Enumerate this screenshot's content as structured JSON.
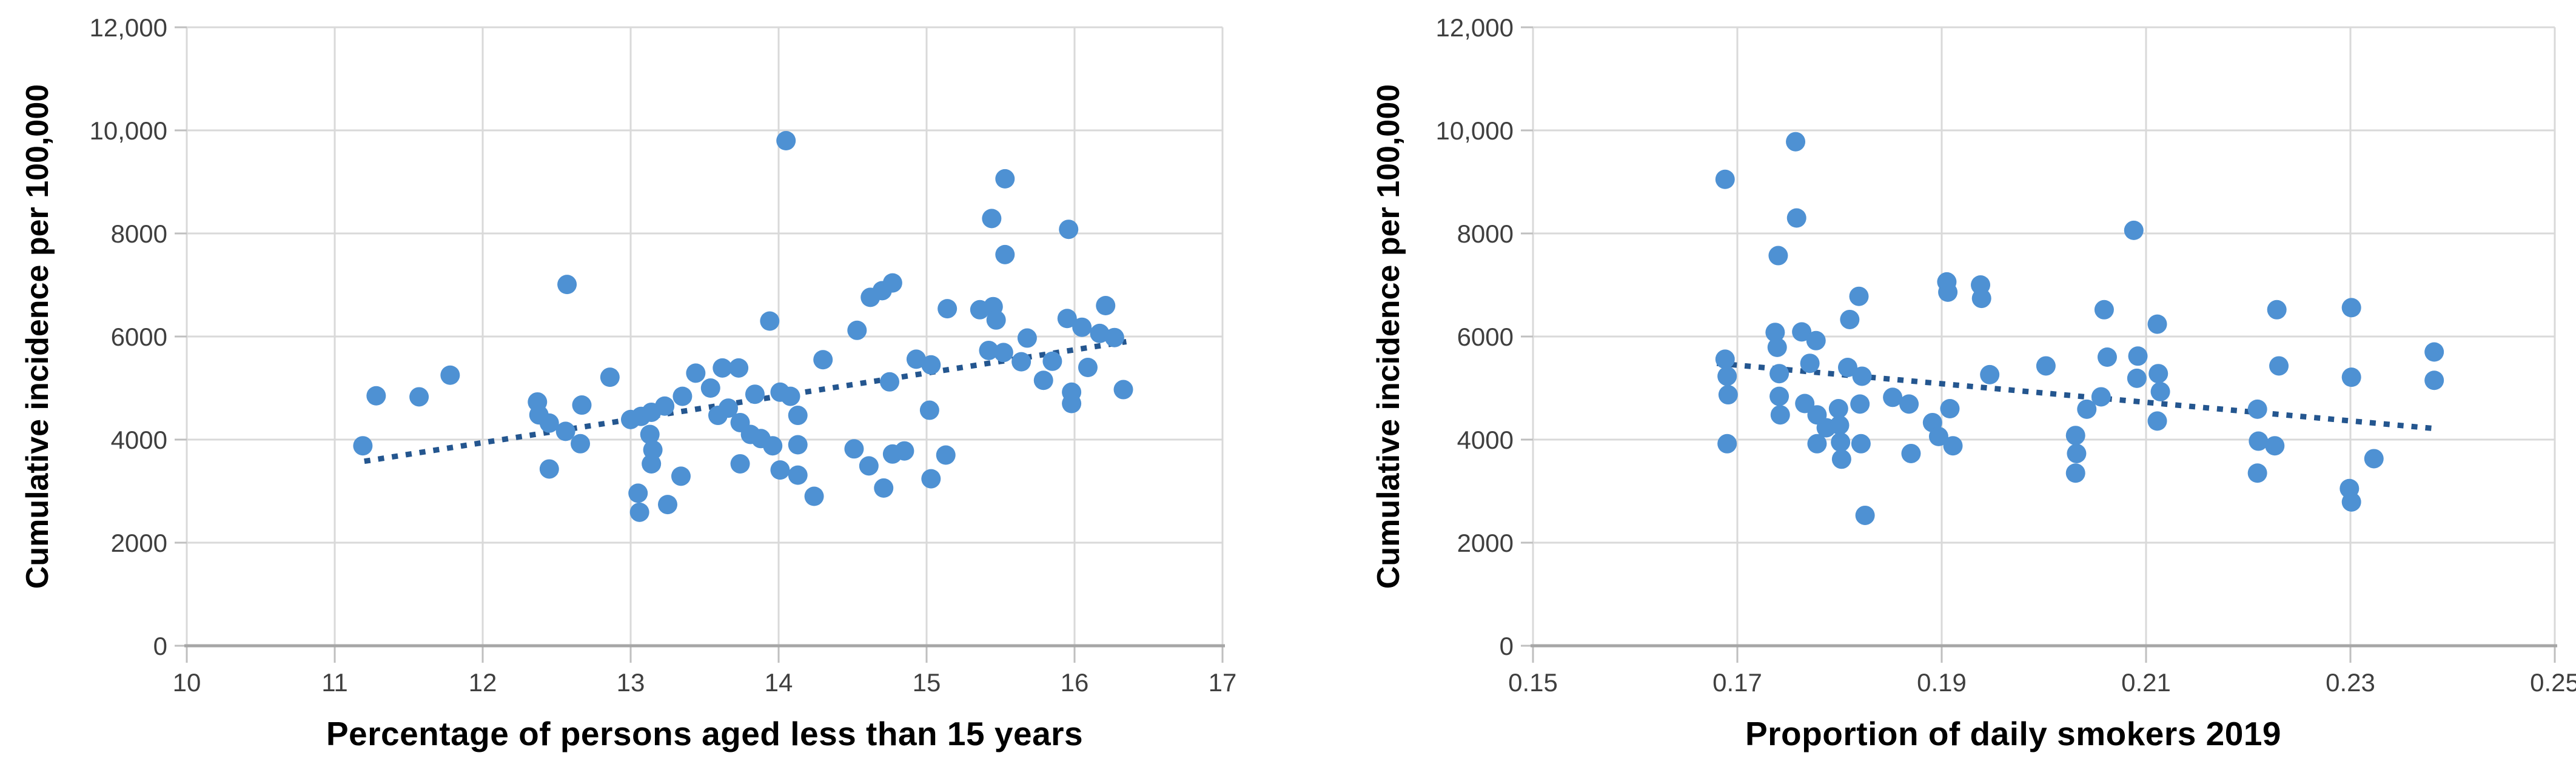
{
  "figure": {
    "background": "#FFFFFF",
    "marker_color": "#4E91D3",
    "marker_radius": 16,
    "trendline_color": "#24568F",
    "gridline_color": "#D9D9D9",
    "axis_line_color": "#A6A6A6",
    "tick_mark_color": "#BFBFBF",
    "tick_label_color": "#3F3F3F",
    "axis_title_color": "#000000"
  },
  "chart_data": [
    {
      "type": "scatter",
      "title": "",
      "xlabel": "Percentage of persons aged less than 15 years",
      "ylabel": "Cumulative incidence per 100,000",
      "xlim": [
        10,
        17
      ],
      "ylim": [
        0,
        12000
      ],
      "x_ticks": [
        10,
        11,
        12,
        13,
        14,
        15,
        16,
        17
      ],
      "x_tick_labels": [
        "10",
        "11",
        "12",
        "13",
        "14",
        "15",
        "16",
        "17"
      ],
      "y_ticks": [
        0,
        2000,
        4000,
        6000,
        8000,
        10000,
        12000
      ],
      "y_tick_labels": [
        "0",
        "2000",
        "4000",
        "6000",
        "8000",
        "10,000",
        "12,000"
      ],
      "grid": true,
      "legend": false,
      "trendline": {
        "style": "dotted",
        "x1": 11.2,
        "y1": 3580,
        "x2": 16.35,
        "y2": 5900
      },
      "points": [
        [
          11.19,
          3880
        ],
        [
          11.28,
          4850
        ],
        [
          11.57,
          4830
        ],
        [
          11.78,
          5250
        ],
        [
          12.37,
          4730
        ],
        [
          12.38,
          4480
        ],
        [
          12.45,
          4320
        ],
        [
          12.45,
          3430
        ],
        [
          12.56,
          4160
        ],
        [
          12.57,
          7010
        ],
        [
          12.66,
          3920
        ],
        [
          12.67,
          4670
        ],
        [
          12.86,
          5210
        ],
        [
          13.0,
          4390
        ],
        [
          13.05,
          2960
        ],
        [
          13.06,
          2590
        ],
        [
          13.07,
          4450
        ],
        [
          13.13,
          4100
        ],
        [
          13.14,
          4530
        ],
        [
          13.14,
          3530
        ],
        [
          13.15,
          3800
        ],
        [
          13.23,
          4650
        ],
        [
          13.25,
          2740
        ],
        [
          13.34,
          3290
        ],
        [
          13.35,
          4840
        ],
        [
          13.44,
          5290
        ],
        [
          13.54,
          5000
        ],
        [
          13.62,
          5390
        ],
        [
          13.73,
          5390
        ],
        [
          13.59,
          4470
        ],
        [
          13.66,
          4610
        ],
        [
          13.74,
          4330
        ],
        [
          13.74,
          3530
        ],
        [
          13.81,
          4100
        ],
        [
          13.84,
          4880
        ],
        [
          13.88,
          4020
        ],
        [
          13.96,
          3880
        ],
        [
          13.94,
          6300
        ],
        [
          14.01,
          4920
        ],
        [
          14.08,
          4840
        ],
        [
          14.01,
          3410
        ],
        [
          14.05,
          9800
        ],
        [
          14.13,
          4470
        ],
        [
          14.13,
          3900
        ],
        [
          14.13,
          3310
        ],
        [
          14.24,
          2900
        ],
        [
          14.3,
          5550
        ],
        [
          14.51,
          3820
        ],
        [
          14.53,
          6120
        ],
        [
          14.61,
          3490
        ],
        [
          14.62,
          6760
        ],
        [
          14.7,
          6890
        ],
        [
          14.77,
          7040
        ],
        [
          14.71,
          3060
        ],
        [
          14.75,
          5120
        ],
        [
          14.77,
          3720
        ],
        [
          14.85,
          3780
        ],
        [
          14.93,
          5560
        ],
        [
          15.03,
          5450
        ],
        [
          15.02,
          4570
        ],
        [
          15.03,
          3240
        ],
        [
          15.13,
          3700
        ],
        [
          15.14,
          6540
        ],
        [
          15.36,
          6520
        ],
        [
          15.45,
          6580
        ],
        [
          15.47,
          6320
        ],
        [
          15.42,
          5730
        ],
        [
          15.52,
          5690
        ],
        [
          15.44,
          8290
        ],
        [
          15.53,
          9060
        ],
        [
          15.53,
          7590
        ],
        [
          15.64,
          5510
        ],
        [
          15.68,
          5970
        ],
        [
          15.79,
          5150
        ],
        [
          15.85,
          5520
        ],
        [
          15.95,
          6350
        ],
        [
          15.96,
          8080
        ],
        [
          15.98,
          4920
        ],
        [
          15.98,
          4700
        ],
        [
          16.05,
          6180
        ],
        [
          16.09,
          5400
        ],
        [
          16.17,
          6060
        ],
        [
          16.21,
          6600
        ],
        [
          16.27,
          5980
        ],
        [
          16.33,
          4970
        ]
      ]
    },
    {
      "type": "scatter",
      "title": "",
      "xlabel": "Proportion of daily smokers 2019",
      "ylabel": "Cumulative incidence per 100,000",
      "xlim": [
        0.15,
        0.25
      ],
      "ylim": [
        0,
        12000
      ],
      "x_ticks": [
        0.15,
        0.17,
        0.19,
        0.21,
        0.23,
        0.25
      ],
      "x_tick_labels": [
        "0.15",
        "0.17",
        "0.19",
        "0.21",
        "0.23",
        "0.25"
      ],
      "y_ticks": [
        0,
        2000,
        4000,
        6000,
        8000,
        10000,
        12000
      ],
      "y_tick_labels": [
        "0",
        "2000",
        "4000",
        "6000",
        "8000",
        "10,000",
        "12,000"
      ],
      "grid": true,
      "legend": false,
      "trendline": {
        "style": "dotted",
        "x1": 0.168,
        "y1": 5480,
        "x2": 0.2385,
        "y2": 4210
      },
      "points": [
        [
          0.1688,
          9050
        ],
        [
          0.1688,
          5560
        ],
        [
          0.169,
          5230
        ],
        [
          0.1691,
          4870
        ],
        [
          0.169,
          3920
        ],
        [
          0.1737,
          6080
        ],
        [
          0.1739,
          5790
        ],
        [
          0.1741,
          5280
        ],
        [
          0.1741,
          4840
        ],
        [
          0.1742,
          4480
        ],
        [
          0.174,
          7570
        ],
        [
          0.1757,
          9780
        ],
        [
          0.1758,
          8300
        ],
        [
          0.1763,
          6090
        ],
        [
          0.1777,
          5920
        ],
        [
          0.1771,
          5480
        ],
        [
          0.1766,
          4700
        ],
        [
          0.1778,
          4480
        ],
        [
          0.1787,
          4230
        ],
        [
          0.1799,
          4600
        ],
        [
          0.18,
          4280
        ],
        [
          0.1801,
          3950
        ],
        [
          0.1802,
          3620
        ],
        [
          0.1808,
          5400
        ],
        [
          0.1822,
          5230
        ],
        [
          0.181,
          6330
        ],
        [
          0.1819,
          6780
        ],
        [
          0.182,
          4690
        ],
        [
          0.1778,
          3920
        ],
        [
          0.1821,
          3920
        ],
        [
          0.1825,
          2530
        ],
        [
          0.1852,
          4820
        ],
        [
          0.1868,
          4690
        ],
        [
          0.187,
          3730
        ],
        [
          0.1891,
          4330
        ],
        [
          0.1897,
          4060
        ],
        [
          0.1908,
          4600
        ],
        [
          0.1911,
          3880
        ],
        [
          0.1905,
          7060
        ],
        [
          0.1906,
          6860
        ],
        [
          0.1938,
          7000
        ],
        [
          0.1939,
          6740
        ],
        [
          0.1947,
          5260
        ],
        [
          0.2002,
          5430
        ],
        [
          0.2031,
          4080
        ],
        [
          0.2032,
          3730
        ],
        [
          0.2031,
          3350
        ],
        [
          0.2042,
          4590
        ],
        [
          0.2056,
          4830
        ],
        [
          0.2059,
          6520
        ],
        [
          0.2062,
          5600
        ],
        [
          0.2088,
          8060
        ],
        [
          0.2092,
          5620
        ],
        [
          0.2091,
          5190
        ],
        [
          0.2111,
          6240
        ],
        [
          0.2112,
          5280
        ],
        [
          0.2114,
          4930
        ],
        [
          0.2111,
          4360
        ],
        [
          0.2209,
          4590
        ],
        [
          0.221,
          3970
        ],
        [
          0.2226,
          3880
        ],
        [
          0.2209,
          3350
        ],
        [
          0.2228,
          6520
        ],
        [
          0.223,
          5430
        ],
        [
          0.2301,
          6560
        ],
        [
          0.2301,
          5210
        ],
        [
          0.2299,
          3050
        ],
        [
          0.2301,
          2790
        ],
        [
          0.2323,
          3630
        ],
        [
          0.2382,
          5700
        ],
        [
          0.2382,
          5150
        ]
      ]
    }
  ]
}
